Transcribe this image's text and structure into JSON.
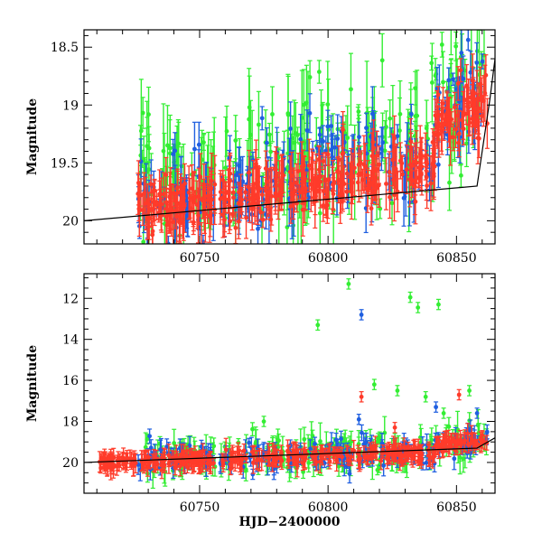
{
  "chart_data": [
    {
      "type": "scatter",
      "panel": "top",
      "xlabel": "",
      "ylabel": "Magnitude",
      "xlim": [
        60705,
        60865
      ],
      "ylim": [
        20.2,
        18.35
      ],
      "x_ticks": [
        60750,
        60800,
        60850
      ],
      "y_ticks": [
        18.5,
        19,
        19.5,
        20
      ],
      "y_tick_labels": [
        "18.5",
        "19",
        "19.5",
        "20"
      ],
      "grid": false,
      "series": [
        {
          "color": "#33ee33",
          "values_desc": "scattered 18.4-20.2 with large error bars",
          "x_range": [
            60726,
            60862
          ],
          "y_center": 19.65,
          "y_spread": 0.55,
          "count": 240
        },
        {
          "color": "#1f5fe0",
          "x_range": [
            60726,
            60862
          ],
          "y_center": 19.8,
          "y_spread": 0.4,
          "count": 220
        },
        {
          "color": "#ff3b2a",
          "x_range": [
            60726,
            60862
          ],
          "y_center": 19.9,
          "y_spread": 0.25,
          "count": 420
        }
      ],
      "model_line": {
        "color": "#000000",
        "points": [
          [
            60705,
            20.0
          ],
          [
            60858,
            19.7
          ],
          [
            60863,
            18.95
          ],
          [
            60865,
            18.6
          ]
        ]
      }
    },
    {
      "type": "scatter",
      "panel": "bottom",
      "xlabel": "HJD−2400000",
      "ylabel": "Magnitude",
      "xlim": [
        60705,
        60865
      ],
      "ylim": [
        21.5,
        10.8
      ],
      "x_ticks": [
        60750,
        60800,
        60850
      ],
      "y_ticks": [
        12,
        14,
        16,
        18,
        20
      ],
      "y_tick_labels": [
        "12",
        "14",
        "16",
        "18",
        "20"
      ],
      "grid": false,
      "series": [
        {
          "color": "#33ee33",
          "x_range": [
            60726,
            60862
          ],
          "y_center": 19.8,
          "y_spread": 0.8,
          "count": 200,
          "outliers": [
            [
              60796,
              13.3
            ],
            [
              60808,
              11.3
            ],
            [
              60832,
              11.95
            ],
            [
              60835,
              12.45
            ],
            [
              60843,
              12.3
            ],
            [
              60775,
              18.0
            ],
            [
              60818,
              16.2
            ],
            [
              60827,
              16.5
            ],
            [
              60838,
              16.8
            ],
            [
              60855,
              16.5
            ],
            [
              60845,
              17.6
            ]
          ]
        },
        {
          "color": "#1f5fe0",
          "x_range": [
            60726,
            60862
          ],
          "y_center": 19.9,
          "y_spread": 0.7,
          "count": 200,
          "outliers": [
            [
              60813,
              12.8
            ],
            [
              60842,
              17.3
            ],
            [
              60858,
              17.6
            ],
            [
              60812,
              17.9
            ]
          ]
        },
        {
          "color": "#ff3b2a",
          "x_range": [
            60711,
            60862
          ],
          "y_center": 19.95,
          "y_spread": 0.35,
          "count": 380,
          "outliers": [
            [
              60713,
              19.6
            ],
            [
              60716,
              19.8
            ],
            [
              60718,
              19.9
            ],
            [
              60720,
              19.75
            ],
            [
              60722,
              19.8
            ],
            [
              60813,
              16.8
            ],
            [
              60851,
              16.7
            ],
            [
              60826,
              18.3
            ]
          ]
        }
      ],
      "model_line": {
        "color": "#000000",
        "points": [
          [
            60705,
            20.0
          ],
          [
            60858,
            19.3
          ],
          [
            60865,
            18.8
          ]
        ]
      }
    }
  ]
}
